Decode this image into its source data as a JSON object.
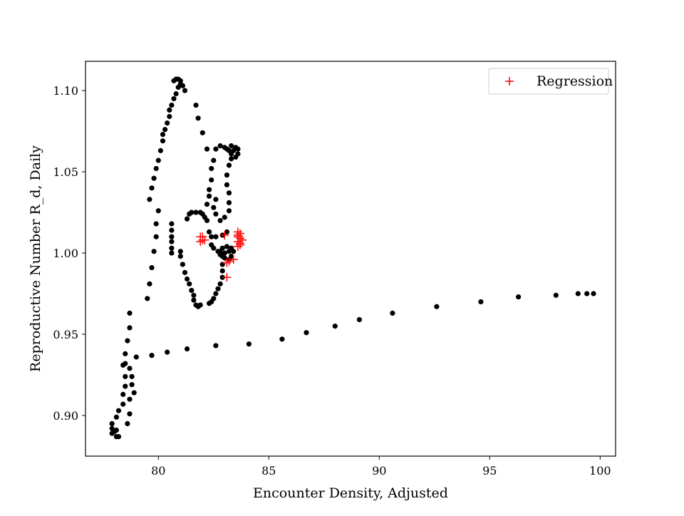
{
  "chart_data": {
    "type": "scatter",
    "title": "",
    "xlabel": "Encounter Density, Adjusted",
    "ylabel": "Reproductive Number R_d, Daily",
    "xlim": [
      76.7,
      100.7
    ],
    "ylim": [
      0.875,
      1.118
    ],
    "xticks": [
      80,
      85,
      90,
      95,
      100
    ],
    "xtick_labels": [
      "80",
      "85",
      "90",
      "95",
      "100"
    ],
    "yticks": [
      0.9,
      0.95,
      1.0,
      1.05,
      1.1
    ],
    "ytick_labels": [
      "0.90",
      "0.95",
      "1.00",
      "1.05",
      "1.10"
    ],
    "grid": false,
    "legend": {
      "position": "top-right",
      "entries": [
        "Regression"
      ]
    },
    "colors": {
      "data": "#000000",
      "regression": "#ff0000",
      "axes": "#000000"
    },
    "series": [
      {
        "marker": "circle",
        "color": "#000000",
        "points": [
          [
            78.1,
            0.887
          ],
          [
            78.0,
            0.89
          ],
          [
            78.2,
            0.887
          ],
          [
            77.9,
            0.889
          ],
          [
            77.9,
            0.892
          ],
          [
            78.1,
            0.891
          ],
          [
            77.9,
            0.895
          ],
          [
            78.1,
            0.899
          ],
          [
            78.2,
            0.903
          ],
          [
            78.4,
            0.907
          ],
          [
            78.6,
            0.895
          ],
          [
            78.4,
            0.913
          ],
          [
            78.5,
            0.918
          ],
          [
            78.5,
            0.924
          ],
          [
            78.4,
            0.931
          ],
          [
            78.5,
            0.938
          ],
          [
            78.6,
            0.946
          ],
          [
            78.7,
            0.954
          ],
          [
            78.7,
            0.963
          ],
          [
            78.7,
            0.901
          ],
          [
            78.7,
            0.91
          ],
          [
            78.9,
            0.914
          ],
          [
            78.8,
            0.919
          ],
          [
            78.8,
            0.924
          ],
          [
            78.7,
            0.929
          ],
          [
            78.5,
            0.932
          ],
          [
            79.0,
            0.936
          ],
          [
            79.7,
            0.937
          ],
          [
            80.4,
            0.939
          ],
          [
            81.3,
            0.941
          ],
          [
            82.6,
            0.943
          ],
          [
            84.1,
            0.944
          ],
          [
            85.6,
            0.947
          ],
          [
            86.7,
            0.951
          ],
          [
            88.0,
            0.955
          ],
          [
            89.1,
            0.959
          ],
          [
            90.6,
            0.963
          ],
          [
            92.6,
            0.967
          ],
          [
            94.6,
            0.97
          ],
          [
            96.3,
            0.973
          ],
          [
            98.0,
            0.974
          ],
          [
            99.0,
            0.975
          ],
          [
            99.4,
            0.975
          ],
          [
            99.7,
            0.975
          ],
          [
            79.5,
            0.972
          ],
          [
            79.6,
            0.981
          ],
          [
            79.7,
            0.991
          ],
          [
            79.8,
            1.001
          ],
          [
            79.9,
            1.01
          ],
          [
            79.9,
            1.018
          ],
          [
            80.0,
            1.026
          ],
          [
            79.6,
            1.033
          ],
          [
            79.7,
            1.04
          ],
          [
            79.8,
            1.046
          ],
          [
            79.9,
            1.052
          ],
          [
            80.0,
            1.057
          ],
          [
            80.1,
            1.063
          ],
          [
            80.2,
            1.069
          ],
          [
            80.2,
            1.073
          ],
          [
            80.3,
            1.076
          ],
          [
            80.4,
            1.08
          ],
          [
            80.5,
            1.084
          ],
          [
            80.5,
            1.088
          ],
          [
            80.6,
            1.091
          ],
          [
            80.7,
            1.095
          ],
          [
            80.8,
            1.098
          ],
          [
            80.9,
            1.102
          ],
          [
            81.0,
            1.104
          ],
          [
            80.7,
            1.106
          ],
          [
            80.8,
            1.107
          ],
          [
            80.9,
            1.107
          ],
          [
            81.0,
            1.106
          ],
          [
            81.1,
            1.103
          ],
          [
            81.2,
            1.1
          ],
          [
            81.7,
            1.091
          ],
          [
            81.8,
            1.083
          ],
          [
            82.0,
            1.074
          ],
          [
            82.2,
            1.064
          ],
          [
            80.6,
            1.018
          ],
          [
            80.6,
            1.014
          ],
          [
            80.6,
            1.01
          ],
          [
            80.6,
            1.007
          ],
          [
            80.6,
            1.003
          ],
          [
            80.6,
            1.0
          ],
          [
            81.0,
            1.001
          ],
          [
            81.0,
            0.998
          ],
          [
            81.1,
            0.993
          ],
          [
            81.2,
            0.988
          ],
          [
            81.3,
            0.984
          ],
          [
            81.4,
            0.981
          ],
          [
            81.5,
            0.977
          ],
          [
            81.6,
            0.974
          ],
          [
            81.6,
            0.971
          ],
          [
            81.7,
            0.968
          ],
          [
            81.8,
            0.967
          ],
          [
            81.9,
            0.968
          ],
          [
            82.3,
            0.969
          ],
          [
            82.4,
            0.97
          ],
          [
            82.5,
            0.972
          ],
          [
            82.6,
            0.975
          ],
          [
            82.7,
            0.978
          ],
          [
            82.8,
            0.981
          ],
          [
            82.9,
            0.985
          ],
          [
            82.9,
            0.989
          ],
          [
            82.9,
            0.993
          ],
          [
            82.4,
            1.005
          ],
          [
            82.5,
            1.003
          ],
          [
            82.7,
            1.001
          ],
          [
            82.8,
            0.999
          ],
          [
            82.9,
            0.998
          ],
          [
            83.0,
            0.997
          ],
          [
            83.2,
            0.996
          ],
          [
            83.3,
            0.998
          ],
          [
            83.4,
            1.001
          ],
          [
            83.3,
            1.003
          ],
          [
            83.1,
            1.004
          ],
          [
            82.9,
            1.003
          ],
          [
            82.8,
            1.001
          ],
          [
            83.0,
            1.0
          ],
          [
            83.2,
            1.001
          ],
          [
            81.3,
            1.021
          ],
          [
            81.4,
            1.024
          ],
          [
            81.5,
            1.025
          ],
          [
            81.7,
            1.025
          ],
          [
            81.9,
            1.025
          ],
          [
            82.0,
            1.024
          ],
          [
            82.1,
            1.022
          ],
          [
            82.2,
            1.02
          ],
          [
            82.3,
            1.013
          ],
          [
            82.4,
            1.01
          ],
          [
            82.6,
            1.01
          ],
          [
            82.9,
            1.011
          ],
          [
            83.1,
            1.013
          ],
          [
            82.2,
            1.03
          ],
          [
            82.3,
            1.035
          ],
          [
            82.3,
            1.039
          ],
          [
            82.4,
            1.045
          ],
          [
            82.4,
            1.052
          ],
          [
            82.5,
            1.057
          ],
          [
            82.6,
            1.064
          ],
          [
            82.8,
            1.066
          ],
          [
            83.0,
            1.065
          ],
          [
            83.2,
            1.063
          ],
          [
            83.3,
            1.061
          ],
          [
            83.3,
            1.058
          ],
          [
            83.2,
            1.054
          ],
          [
            83.1,
            1.048
          ],
          [
            83.1,
            1.042
          ],
          [
            83.2,
            1.037
          ],
          [
            83.2,
            1.031
          ],
          [
            83.2,
            1.026
          ],
          [
            83.0,
            1.022
          ],
          [
            82.8,
            1.02
          ],
          [
            82.6,
            1.024
          ],
          [
            82.5,
            1.028
          ],
          [
            82.6,
            1.033
          ],
          [
            83.1,
            1.064
          ],
          [
            83.3,
            1.066
          ],
          [
            83.5,
            1.065
          ],
          [
            83.6,
            1.064
          ],
          [
            83.6,
            1.061
          ],
          [
            83.5,
            1.059
          ],
          [
            83.4,
            1.063
          ]
        ]
      },
      {
        "name": "Regression",
        "marker": "plus",
        "color": "#ff0000",
        "points": [
          [
            81.9,
            1.01
          ],
          [
            82.0,
            1.008
          ],
          [
            82.0,
            1.01
          ],
          [
            82.1,
            1.008
          ],
          [
            81.9,
            1.007
          ],
          [
            83.0,
            1.011
          ],
          [
            83.1,
            0.994
          ],
          [
            83.1,
            0.985
          ],
          [
            83.2,
            0.995
          ],
          [
            83.4,
            0.996
          ],
          [
            83.6,
            1.004
          ],
          [
            83.7,
            1.006
          ],
          [
            83.7,
            1.009
          ],
          [
            83.6,
            1.01
          ],
          [
            83.7,
            1.012
          ],
          [
            83.6,
            1.013
          ],
          [
            83.8,
            1.008
          ],
          [
            83.6,
            1.007
          ],
          [
            83.7,
            1.005
          ],
          [
            83.6,
            1.011
          ]
        ]
      }
    ]
  }
}
